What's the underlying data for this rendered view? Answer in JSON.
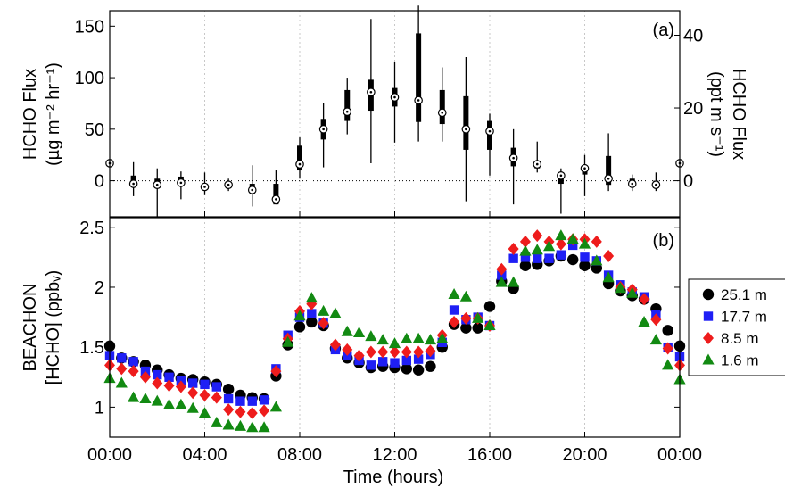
{
  "chart_data": [
    {
      "type": "box",
      "panel_label": "(a)",
      "ylabel": "HCHO Flux",
      "ylabel_units": "(µg m⁻² hr⁻¹)",
      "ylabel_right": "HCHO Flux",
      "ylabel_right_units": "(ppt m s⁻¹)",
      "ylim": [
        -35,
        165
      ],
      "yticks": [
        0,
        50,
        100,
        150
      ],
      "yticks_right": [
        0,
        20,
        40
      ],
      "right_axis_factor": 3.53,
      "reference_line": 0,
      "grid": "vertical dotted",
      "x_hours": [
        0,
        1,
        2,
        3,
        4,
        5,
        6,
        7,
        8,
        9,
        10,
        11,
        12,
        13,
        14,
        15,
        16,
        17,
        18,
        19,
        20,
        21,
        22,
        23,
        24
      ],
      "median": [
        17,
        -3,
        -4,
        -2,
        -6,
        -4,
        -9,
        -18,
        16,
        50,
        67,
        86,
        81,
        78,
        66,
        50,
        48,
        22,
        16,
        5,
        12,
        2,
        -3,
        -4,
        17
      ],
      "q1": [
        17,
        -6,
        -7,
        -5,
        -8,
        -6,
        -13,
        -23,
        10,
        40,
        58,
        68,
        72,
        57,
        55,
        30,
        30,
        14,
        12,
        -3,
        6,
        -4,
        -6,
        -6,
        17
      ],
      "q3": [
        17,
        5,
        2,
        4,
        -3,
        -1,
        -3,
        -3,
        34,
        60,
        88,
        98,
        90,
        143,
        88,
        82,
        58,
        32,
        19,
        6,
        15,
        24,
        2,
        0,
        17
      ],
      "whisker_low": [
        17,
        -15,
        -35,
        -18,
        -14,
        -10,
        -25,
        -23,
        2,
        13,
        45,
        17,
        37,
        38,
        38,
        -20,
        5,
        -23,
        8,
        -32,
        -15,
        -10,
        -10,
        -10,
        17
      ],
      "whisker_high": [
        17,
        18,
        12,
        9,
        8,
        2,
        15,
        10,
        42,
        75,
        100,
        157,
        115,
        170,
        110,
        120,
        65,
        50,
        38,
        12,
        25,
        46,
        6,
        8,
        17
      ]
    },
    {
      "type": "scatter",
      "panel_label": "(b)",
      "ylabel": "BEACHON",
      "ylabel_units": "[HCHO] (ppbᵥ)",
      "ylim": [
        0.75,
        2.58
      ],
      "yticks": [
        1,
        1.5,
        2,
        2.5
      ],
      "xlabel": "Time (hours)",
      "xlim": [
        0,
        24
      ],
      "xticks": [
        "00:00",
        "04:00",
        "08:00",
        "12:00",
        "16:00",
        "20:00",
        "00:00"
      ],
      "grid": "vertical dotted",
      "legend_placement": "right, outside plot",
      "x_hours": [
        0,
        0.5,
        1,
        1.5,
        2,
        2.5,
        3,
        3.5,
        4,
        4.5,
        5,
        5.5,
        6,
        6.5,
        7,
        7.5,
        8,
        8.5,
        9,
        9.5,
        10,
        10.5,
        11,
        11.5,
        12,
        12.5,
        13,
        13.5,
        14,
        14.5,
        15,
        15.5,
        16,
        16.5,
        17,
        17.5,
        18,
        18.5,
        19,
        19.5,
        20,
        20.5,
        21,
        21.5,
        22,
        22.5,
        23,
        23.5,
        24
      ],
      "series": [
        {
          "name": "25.1 m",
          "marker": "circle",
          "color": "#000000",
          "values": [
            1.51,
            1.41,
            1.38,
            1.35,
            1.31,
            1.27,
            1.24,
            1.23,
            1.21,
            1.19,
            1.15,
            1.1,
            1.08,
            1.07,
            1.26,
            1.52,
            1.67,
            1.71,
            1.68,
            1.49,
            1.41,
            1.37,
            1.33,
            1.34,
            1.33,
            1.32,
            1.31,
            1.34,
            1.5,
            1.69,
            1.66,
            1.66,
            1.84,
            2.05,
            1.99,
            2.18,
            2.19,
            2.22,
            2.26,
            2.23,
            2.18,
            2.16,
            2.03,
            1.97,
            1.93,
            1.9,
            1.82,
            1.64,
            1.51
          ]
        },
        {
          "name": "17.7 m",
          "marker": "square",
          "color": "#1f1ff5",
          "values": [
            1.43,
            1.41,
            1.38,
            1.3,
            1.27,
            1.25,
            1.22,
            1.2,
            1.19,
            1.17,
            1.07,
            1.05,
            1.05,
            1.06,
            1.32,
            1.6,
            1.75,
            1.78,
            1.7,
            1.48,
            1.43,
            1.39,
            1.35,
            1.38,
            1.37,
            1.39,
            1.4,
            1.44,
            1.54,
            1.81,
            1.73,
            1.75,
            1.68,
            2.1,
            2.24,
            2.25,
            2.24,
            2.24,
            2.27,
            2.35,
            2.25,
            2.22,
            2.1,
            2.02,
            1.96,
            1.92,
            1.77,
            1.5,
            1.42
          ]
        },
        {
          "name": "8.5 m",
          "marker": "diamond",
          "color": "#ee1c1c",
          "values": [
            1.35,
            1.32,
            1.3,
            1.25,
            1.2,
            1.18,
            1.17,
            1.12,
            1.1,
            1.08,
            0.98,
            0.96,
            0.95,
            0.97,
            1.3,
            1.57,
            1.8,
            1.86,
            1.7,
            1.52,
            1.48,
            1.43,
            1.46,
            1.46,
            1.46,
            1.46,
            1.46,
            1.47,
            1.6,
            1.71,
            1.74,
            1.74,
            1.68,
            2.15,
            2.32,
            2.38,
            2.43,
            2.38,
            2.36,
            2.4,
            2.4,
            2.38,
            2.26,
            2.0,
            1.98,
            1.9,
            1.73,
            1.49,
            1.35
          ]
        },
        {
          "name": "1.6 m",
          "marker": "triangle",
          "color": "#128a12",
          "values": [
            1.24,
            1.2,
            1.08,
            1.07,
            1.05,
            1.02,
            1.02,
            0.99,
            0.95,
            0.87,
            0.85,
            0.84,
            0.83,
            0.83,
            1.0,
            1.54,
            1.76,
            1.91,
            1.8,
            1.78,
            1.63,
            1.62,
            1.59,
            1.56,
            1.53,
            1.57,
            1.57,
            1.56,
            1.57,
            1.94,
            1.92,
            1.74,
            1.68,
            2.04,
            2.04,
            2.3,
            2.31,
            2.34,
            2.43,
            2.4,
            2.36,
            2.22,
            2.08,
            1.99,
            1.95,
            1.71,
            1.56,
            1.35,
            1.23
          ]
        }
      ]
    }
  ]
}
